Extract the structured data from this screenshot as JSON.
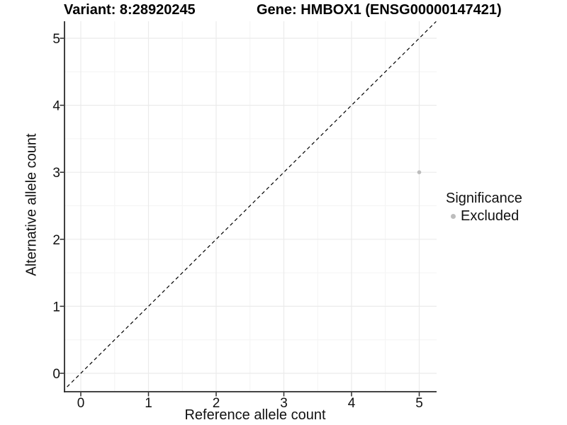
{
  "titles": {
    "left": "Variant: 8:28920245",
    "right": "Gene: HMBOX1 (ENSG00000147421)"
  },
  "legend": {
    "title": "Significance",
    "items": [
      {
        "label": "Excluded",
        "color": "#bdbdbd"
      }
    ]
  },
  "colors": {
    "grid_major": "#ebebeb",
    "grid_minor": "#f4f4f4",
    "axis_line": "#2a2a2a",
    "tick_mark": "#2a2a2a",
    "tick_text": "#111111",
    "identity_line": "#000000",
    "point": "#bdbdbd"
  },
  "chart_data": {
    "type": "scatter",
    "title": "Variant: 8:28920245 | Gene: HMBOX1 (ENSG00000147421)",
    "xlabel": "Reference allele count",
    "ylabel": "Alternative allele count",
    "x_ticks": [
      0,
      1,
      2,
      3,
      4,
      5
    ],
    "y_ticks": [
      0,
      1,
      2,
      3,
      4,
      5
    ],
    "xlim": [
      -0.25,
      5.25
    ],
    "ylim": [
      -0.27,
      5.25
    ],
    "grid": "major gridlines at integers, minor at 0.5 steps, light gray on white",
    "legend_position": "right",
    "series": [
      {
        "name": "Excluded",
        "color": "#bdbdbd",
        "points": [
          {
            "x": 5,
            "y": 3
          }
        ]
      }
    ],
    "reference_line": {
      "type": "identity y=x",
      "style": "dashed",
      "color": "#000000"
    }
  }
}
